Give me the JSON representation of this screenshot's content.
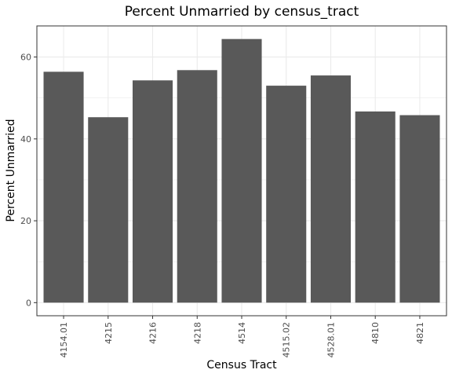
{
  "chart_data": {
    "type": "bar",
    "title": "Percent Unmarried by census_tract",
    "xlabel": "Census Tract",
    "ylabel": "Percent Unmarried",
    "categories": [
      "4154.01",
      "4215",
      "4216",
      "4218",
      "4514",
      "4515.02",
      "4528.01",
      "4810",
      "4821"
    ],
    "values": [
      56.4,
      45.3,
      54.3,
      56.8,
      64.4,
      53.0,
      55.5,
      46.7,
      45.8
    ],
    "ylim": [
      -3.2,
      67.6
    ],
    "yticks": [
      0,
      20,
      40,
      60
    ],
    "grid": true,
    "bar_color": "#595959",
    "grid_color": "#ebebeb"
  }
}
